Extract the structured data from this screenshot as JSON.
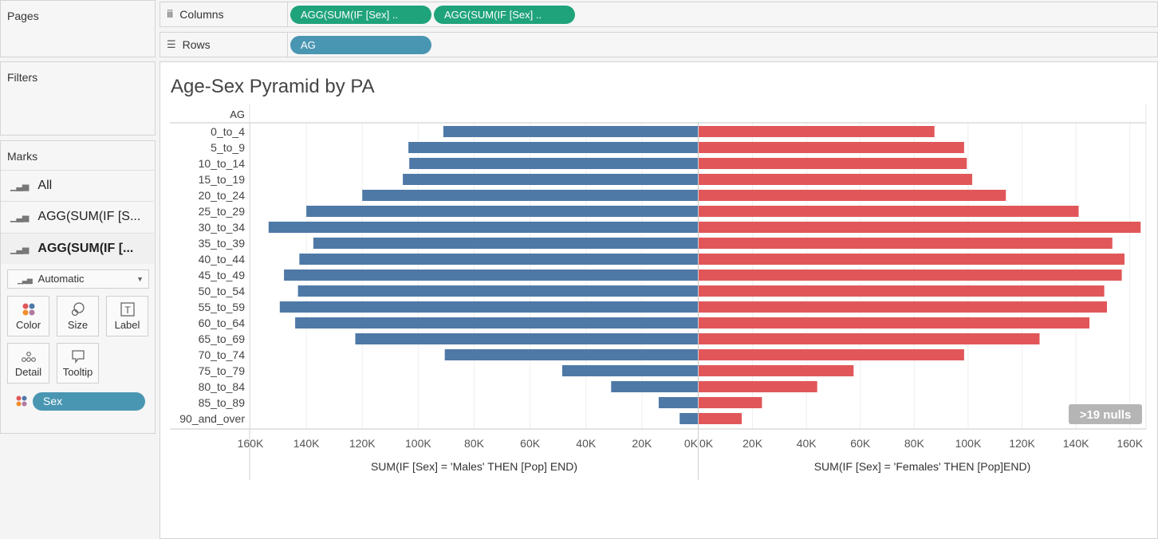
{
  "shelves": {
    "pages_label": "Pages",
    "filters_label": "Filters",
    "columns": {
      "label": "Columns",
      "icon": "columns-icon",
      "pills": [
        "AGG(SUM(IF [Sex] ..",
        "AGG(SUM(IF [Sex] .."
      ],
      "pill_color": "#1fa37a"
    },
    "rows": {
      "label": "Rows",
      "icon": "rows-icon",
      "pills": [
        "AG"
      ],
      "pill_color": "#4996b2"
    }
  },
  "marks": {
    "title": "Marks",
    "layers": [
      "All",
      "AGG(SUM(IF [S...",
      "AGG(SUM(IF [..."
    ],
    "mark_type": "Automatic",
    "buttons": {
      "color": "Color",
      "size": "Size",
      "label": "Label",
      "detail": "Detail",
      "tooltip": "Tooltip"
    },
    "sex_pill": "Sex",
    "sex_pill_color": "#4996b2"
  },
  "view": {
    "title": "Age-Sex Pyramid by PA",
    "null_badge": ">19 nulls"
  },
  "chart_data": {
    "type": "bar",
    "orientation": "horizontal",
    "row_header": "AG",
    "categories": [
      "0_to_4",
      "5_to_9",
      "10_to_14",
      "15_to_19",
      "20_to_24",
      "25_to_29",
      "30_to_34",
      "35_to_39",
      "40_to_44",
      "45_to_49",
      "50_to_54",
      "55_to_59",
      "60_to_64",
      "65_to_69",
      "70_to_74",
      "75_to_79",
      "80_to_84",
      "85_to_89",
      "90_and_over"
    ],
    "series": [
      {
        "name": "Males",
        "color": "#4e79a7",
        "values": [
          91000,
          103500,
          103200,
          105500,
          120000,
          140000,
          153500,
          137500,
          142500,
          148000,
          143000,
          149500,
          144000,
          122500,
          90500,
          48500,
          31000,
          14000,
          6500
        ],
        "axis": {
          "label": "SUM(IF [Sex] = 'Males' THEN [Pop] END)",
          "reversed": true,
          "range": [
            0,
            160000
          ],
          "ticks": [
            0,
            20000,
            40000,
            60000,
            80000,
            100000,
            120000,
            140000,
            160000
          ],
          "tick_labels": [
            "0K",
            "20K",
            "40K",
            "60K",
            "80K",
            "100K",
            "120K",
            "140K",
            "160K"
          ]
        }
      },
      {
        "name": "Females",
        "color": "#e15759",
        "values": [
          87500,
          98500,
          99500,
          101500,
          114000,
          141000,
          164000,
          153500,
          158000,
          157000,
          150500,
          151500,
          145000,
          126500,
          98500,
          57500,
          44000,
          23500,
          16000
        ],
        "axis": {
          "label": "SUM(IF [Sex] = 'Females' THEN [Pop]END)",
          "reversed": false,
          "range": [
            0,
            166000
          ],
          "ticks": [
            0,
            20000,
            40000,
            60000,
            80000,
            100000,
            120000,
            140000,
            160000
          ],
          "tick_labels": [
            "0K",
            "20K",
            "40K",
            "60K",
            "80K",
            "100K",
            "120K",
            "140K",
            "160K"
          ]
        }
      }
    ],
    "grid": true
  }
}
